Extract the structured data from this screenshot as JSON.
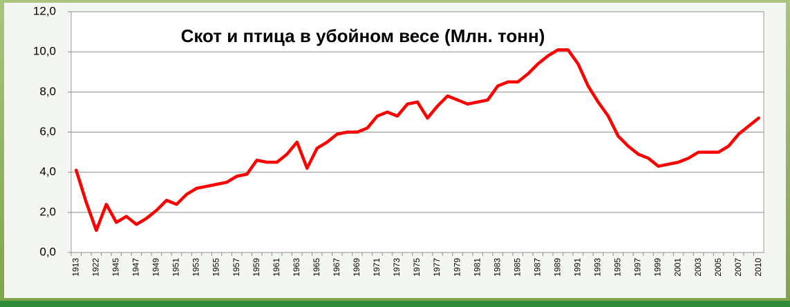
{
  "chart_data": {
    "type": "line",
    "title": "Скот и птица в убойном весе (Млн. тонн)",
    "categories": [
      "1913",
      null,
      "1922",
      null,
      "1945",
      null,
      "1947",
      null,
      "1949",
      null,
      "1951",
      null,
      "1953",
      null,
      "1955",
      null,
      "1957",
      null,
      "1959",
      null,
      "1961",
      null,
      "1963",
      null,
      "1965",
      null,
      "1967",
      null,
      "1969",
      null,
      "1971",
      null,
      "1973",
      null,
      "1975",
      null,
      "1977",
      null,
      "1979",
      null,
      "1981",
      null,
      "1983",
      null,
      "1985",
      null,
      "1987",
      null,
      "1989",
      null,
      "1991",
      null,
      "1993",
      null,
      "1995",
      null,
      "1997",
      null,
      "1999",
      null,
      "2001",
      null,
      "2003",
      null,
      "2005",
      null,
      "2007",
      null,
      "2010"
    ],
    "series": [
      {
        "color": "#ff0000",
        "values": [
          4.1,
          2.5,
          1.1,
          2.4,
          1.5,
          1.8,
          1.4,
          1.7,
          2.1,
          2.6,
          2.4,
          2.9,
          3.2,
          3.3,
          3.4,
          3.5,
          3.8,
          3.9,
          4.6,
          4.5,
          4.5,
          4.9,
          5.5,
          4.2,
          5.2,
          5.5,
          5.9,
          6.0,
          6.0,
          6.2,
          6.8,
          7.0,
          6.8,
          7.4,
          7.5,
          6.7,
          7.3,
          7.8,
          7.6,
          7.4,
          7.5,
          7.6,
          8.3,
          8.5,
          8.5,
          8.9,
          9.4,
          9.8,
          10.1,
          10.1,
          9.4,
          8.3,
          7.5,
          6.8,
          5.8,
          5.3,
          4.9,
          4.7,
          4.3,
          4.4,
          4.5,
          4.7,
          5.0,
          5.0,
          5.0,
          5.3,
          5.9,
          6.3,
          6.7
        ]
      }
    ],
    "ylim": [
      0,
      12
    ],
    "yticks": [
      {
        "value": 0,
        "label": "0,0"
      },
      {
        "value": 2,
        "label": "2,0"
      },
      {
        "value": 4,
        "label": "4,0"
      },
      {
        "value": 6,
        "label": "6,0"
      },
      {
        "value": 8,
        "label": "8,0"
      },
      {
        "value": 10,
        "label": "10,0"
      },
      {
        "value": 12,
        "label": "12,0"
      }
    ],
    "grid": true
  }
}
